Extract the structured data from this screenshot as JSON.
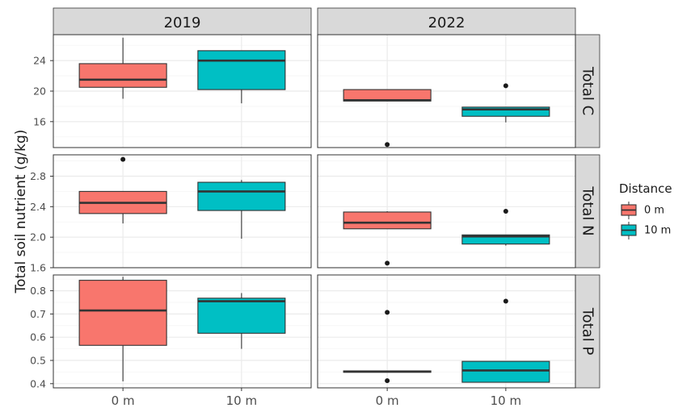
{
  "chart_data": {
    "type": "boxplot",
    "ylabel": "Total soil nutrient (g/kg)",
    "xlabel": "",
    "facet_columns": [
      "2019",
      "2022"
    ],
    "facet_rows": [
      "Total C",
      "Total N",
      "Total P"
    ],
    "categories": [
      "0 m",
      "10 m"
    ],
    "legend": {
      "title": "Distance",
      "position": "right",
      "entries": [
        {
          "label": "0 m",
          "color": "#F8766D"
        },
        {
          "label": "10 m",
          "color": "#00BFC4"
        }
      ]
    },
    "grid": true,
    "rows": [
      {
        "name": "Total C",
        "ylim": [
          12.6,
          27.4
        ],
        "ticks": [
          16,
          20,
          24
        ],
        "tick_labels": [
          "16",
          "20",
          "24"
        ],
        "panels": {
          "2019": [
            {
              "category": "0 m",
              "lower": 19.0,
              "q1": 20.5,
              "median": 21.5,
              "q3": 23.6,
              "upper": 27.0,
              "outliers": []
            },
            {
              "category": "10 m",
              "lower": 18.4,
              "q1": 20.2,
              "median": 24.0,
              "q3": 25.3,
              "upper": 25.3,
              "outliers": []
            }
          ],
          "2022": [
            {
              "category": "0 m",
              "lower": 18.7,
              "q1": 18.7,
              "median": 18.8,
              "q3": 20.2,
              "upper": 20.2,
              "outliers": [
                13.0
              ]
            },
            {
              "category": "10 m",
              "lower": 15.9,
              "q1": 16.7,
              "median": 17.6,
              "q3": 17.9,
              "upper": 17.9,
              "outliers": [
                20.7
              ]
            }
          ]
        }
      },
      {
        "name": "Total N",
        "ylim": [
          1.6,
          3.08
        ],
        "ticks": [
          1.6,
          2.0,
          2.4,
          2.8
        ],
        "tick_labels": [
          "1.6",
          "2.0",
          "2.4",
          "2.8"
        ],
        "panels": {
          "2019": [
            {
              "category": "0 m",
              "lower": 2.18,
              "q1": 2.31,
              "median": 2.45,
              "q3": 2.6,
              "upper": 2.6,
              "outliers": [
                3.02
              ]
            },
            {
              "category": "10 m",
              "lower": 1.98,
              "q1": 2.35,
              "median": 2.6,
              "q3": 2.72,
              "upper": 2.75,
              "outliers": []
            }
          ],
          "2022": [
            {
              "category": "0 m",
              "lower": 2.11,
              "q1": 2.11,
              "median": 2.19,
              "q3": 2.33,
              "upper": 2.34,
              "outliers": [
                1.66
              ]
            },
            {
              "category": "10 m",
              "lower": 1.89,
              "q1": 1.91,
              "median": 2.01,
              "q3": 2.03,
              "upper": 2.03,
              "outliers": [
                2.34
              ]
            }
          ]
        }
      },
      {
        "name": "Total P",
        "ylim": [
          0.382,
          0.868
        ],
        "ticks": [
          0.4,
          0.5,
          0.6,
          0.7,
          0.8
        ],
        "tick_labels": [
          "0.4",
          "0.5",
          "0.6",
          "0.7",
          "0.8"
        ],
        "panels": {
          "2019": [
            {
              "category": "0 m",
              "lower": 0.41,
              "q1": 0.565,
              "median": 0.715,
              "q3": 0.845,
              "upper": 0.86,
              "outliers": []
            },
            {
              "category": "10 m",
              "lower": 0.55,
              "q1": 0.617,
              "median": 0.755,
              "q3": 0.768,
              "upper": 0.79,
              "outliers": []
            }
          ],
          "2022": [
            {
              "category": "0 m",
              "lower": 0.449,
              "q1": 0.449,
              "median": 0.452,
              "q3": 0.455,
              "upper": 0.455,
              "outliers": [
                0.707,
                0.413
              ]
            },
            {
              "category": "10 m",
              "lower": 0.406,
              "q1": 0.406,
              "median": 0.457,
              "q3": 0.496,
              "upper": 0.496,
              "outliers": [
                0.755
              ]
            }
          ]
        }
      }
    ]
  }
}
